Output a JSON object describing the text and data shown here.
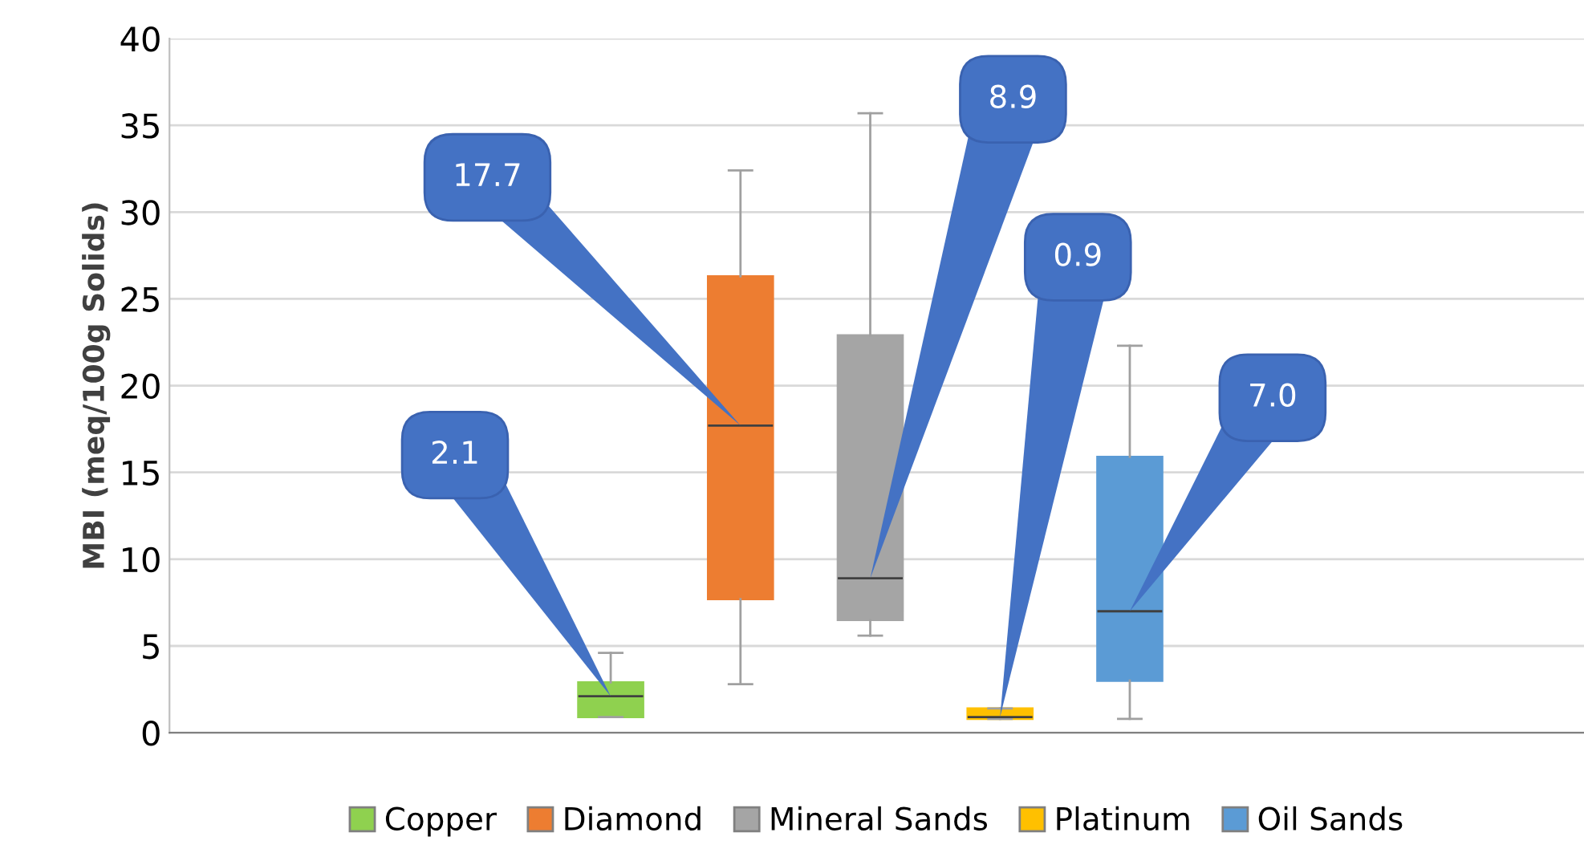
{
  "chart_data": {
    "type": "box",
    "ylabel": "MBI (meq/100g Solids)",
    "categories": [
      null
    ],
    "ylim": [
      0,
      40
    ],
    "yticks": [
      0,
      5,
      10,
      15,
      20,
      25,
      30,
      35,
      40
    ],
    "grid": "y",
    "legend": "bottom",
    "tick_labels": "y",
    "series": [
      {
        "name": "Copper",
        "color": "#8fd14f",
        "boxes": [
          {
            "low": 0.9,
            "q1": 0.9,
            "median": 2.1,
            "q3": 2.9,
            "high": 4.6
          }
        ]
      },
      {
        "name": "Diamond",
        "color": "#ed7d31",
        "boxes": [
          {
            "low": 2.8,
            "q1": 7.7,
            "median": 17.7,
            "q3": 26.3,
            "high": 32.4
          }
        ]
      },
      {
        "name": "Mineral Sands",
        "color": "#a5a5a5",
        "boxes": [
          {
            "low": 5.6,
            "q1": 6.5,
            "median": 8.9,
            "q3": 22.9,
            "high": 35.7
          }
        ]
      },
      {
        "name": "Platinum",
        "color": "#ffc000",
        "boxes": [
          {
            "low": 0.8,
            "q1": 0.8,
            "median": 0.9,
            "q3": 1.4,
            "high": 1.4
          }
        ]
      },
      {
        "name": "Oil Sands",
        "color": "#5b9bd5",
        "boxes": [
          {
            "low": 0.8,
            "q1": 3.0,
            "median": 7.0,
            "q3": 15.9,
            "high": 22.3
          }
        ]
      }
    ],
    "annotations": [
      "2.1",
      "17.7",
      "8.9",
      "0.9",
      "7.0"
    ]
  }
}
